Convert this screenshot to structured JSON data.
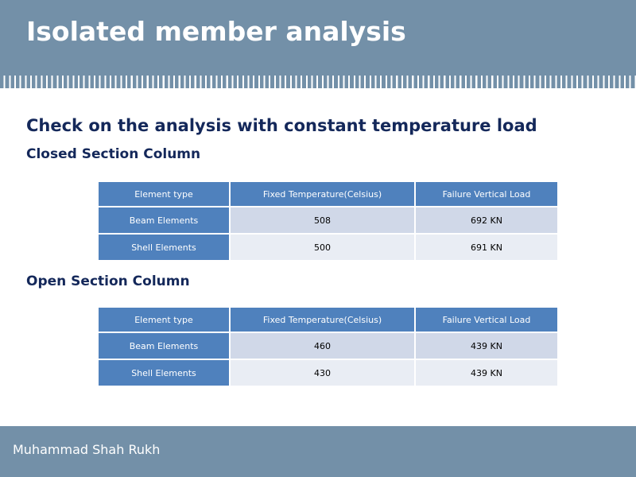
{
  "title": "Isolated member analysis",
  "heading": "Check on the analysis with constant temperature load",
  "sections": [
    {
      "title": "Closed Section Column",
      "headers": [
        "Element type",
        "Fixed Temperature(Celsius)",
        "Failure Vertical Load"
      ],
      "rows": [
        [
          "Beam Elements",
          "508",
          "692 KN"
        ],
        [
          "Shell Elements",
          "500",
          "691 KN"
        ]
      ]
    },
    {
      "title": "Open Section Column",
      "headers": [
        "Element type",
        "Fixed Temperature(Celsius)",
        "Failure Vertical Load"
      ],
      "rows": [
        [
          "Beam Elements",
          "460",
          "439 KN"
        ],
        [
          "Shell Elements",
          "430",
          "439 KN"
        ]
      ]
    }
  ],
  "footer": {
    "author": "Muhammad Shah Rukh"
  },
  "colors": {
    "header": "#7390a8",
    "accent": "#4f81bd",
    "heading": "#14285a"
  }
}
